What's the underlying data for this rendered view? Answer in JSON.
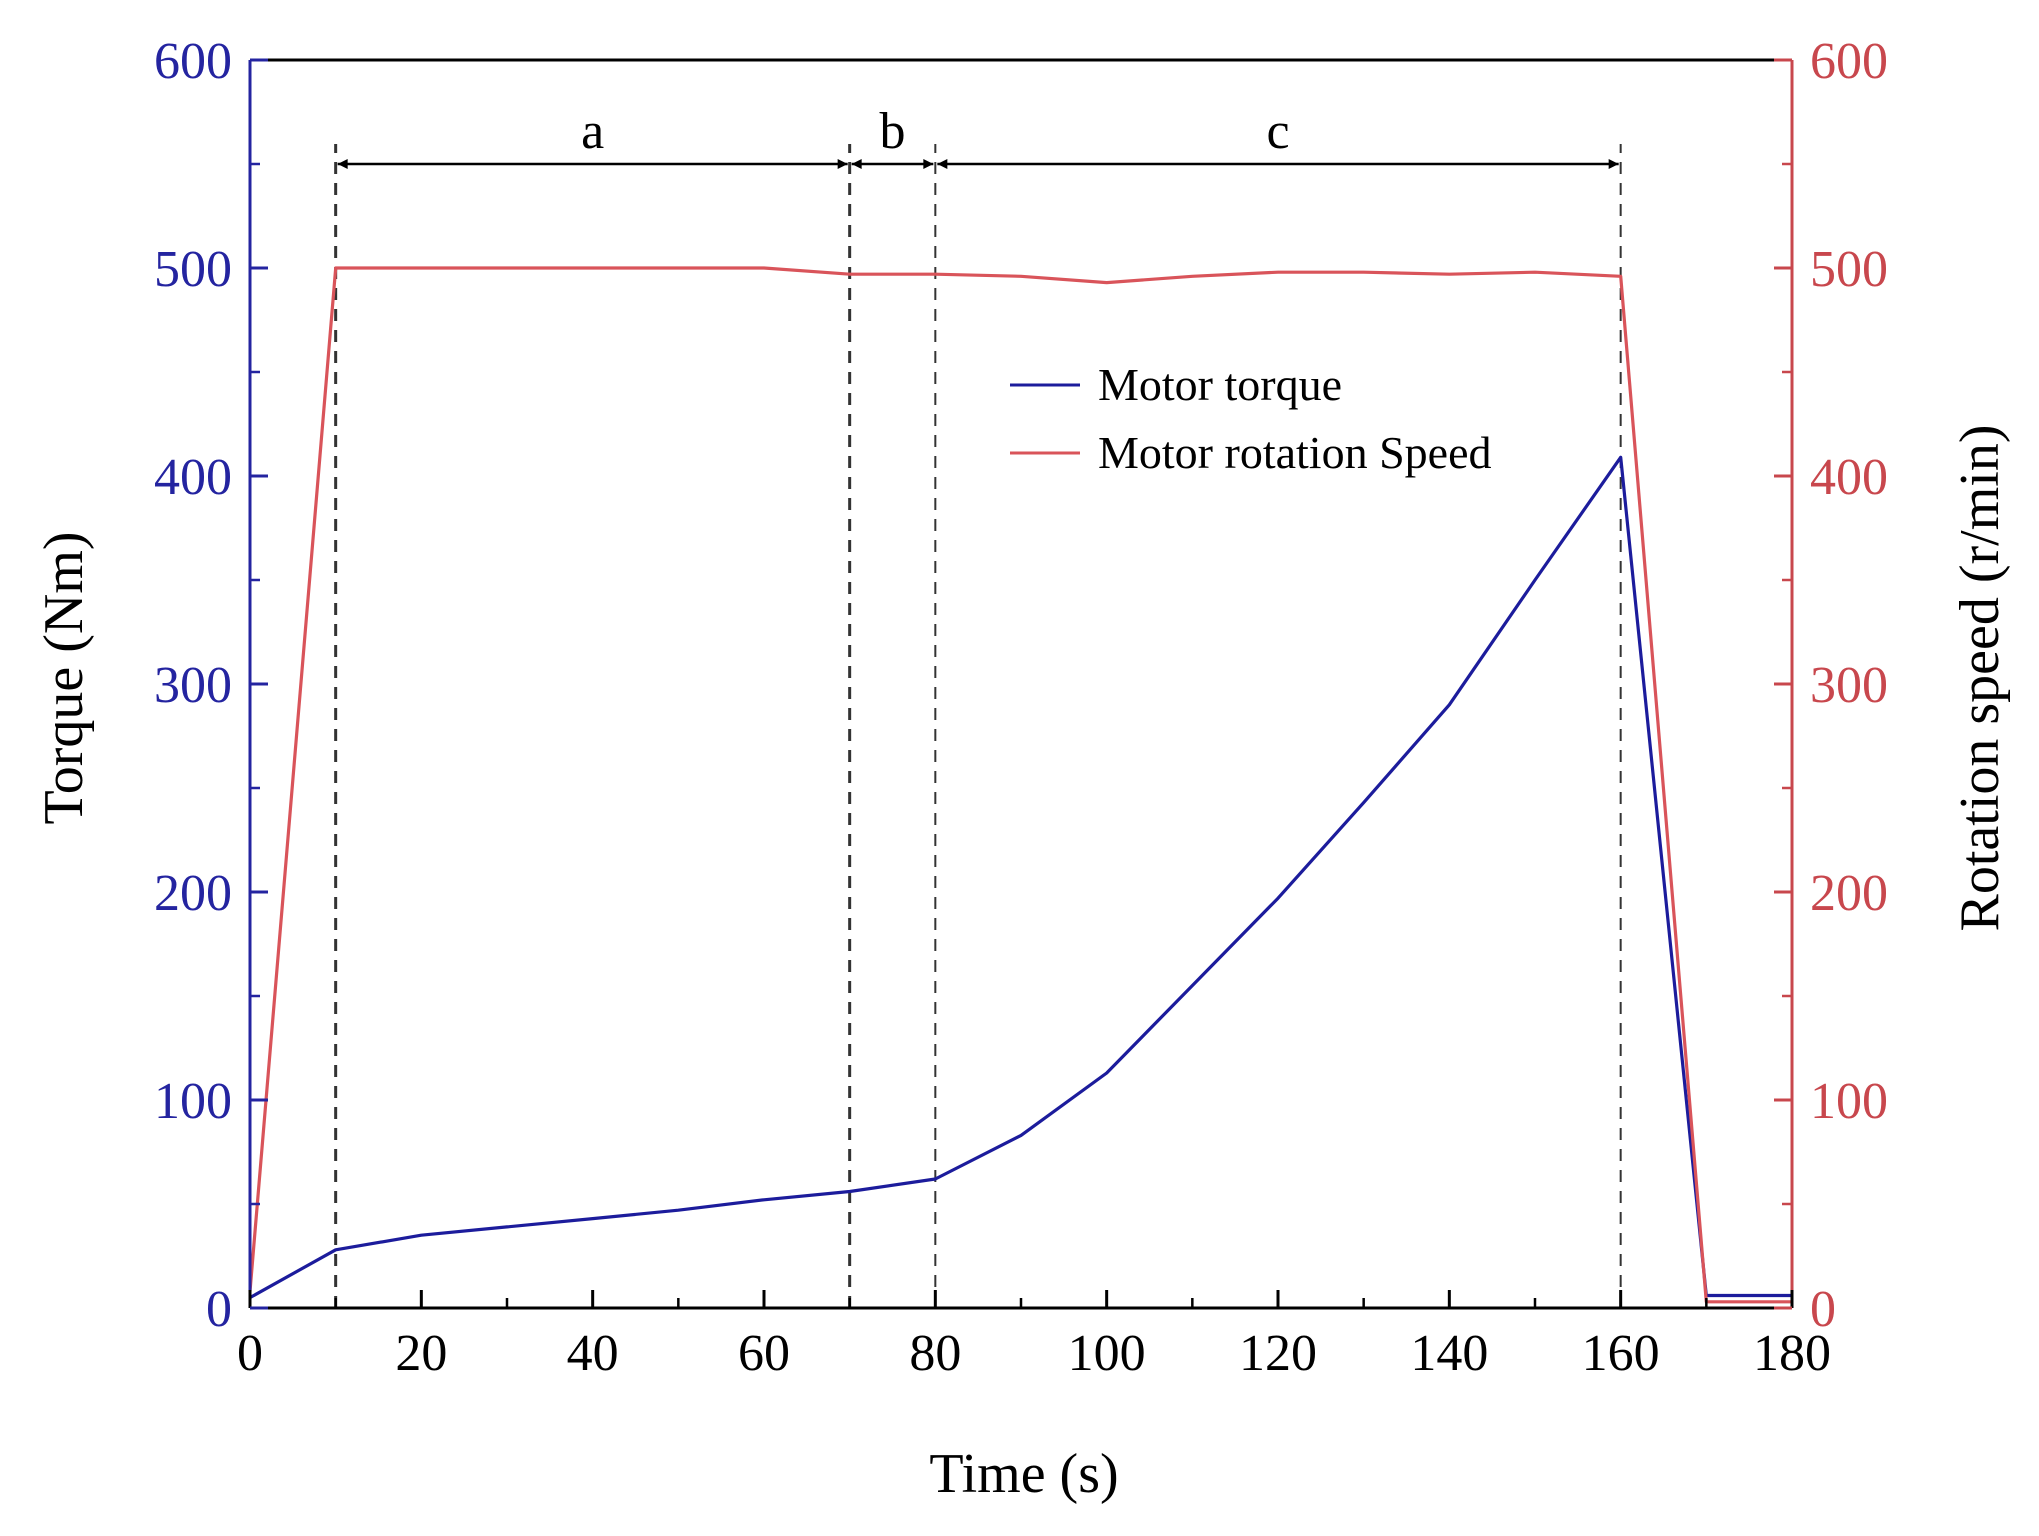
{
  "chart_data": {
    "type": "line",
    "title": "",
    "xlabel": "Time (s)",
    "ylabel": "Torque (Nm)",
    "y2label": "Rotation speed (r/min)",
    "xlim": [
      0,
      180
    ],
    "ylim": [
      0,
      600
    ],
    "y2lim": [
      0,
      600
    ],
    "grid": false,
    "legend_position": "center-right",
    "x_ticks": [
      0,
      20,
      40,
      60,
      80,
      100,
      120,
      140,
      160,
      180
    ],
    "x_tick_labels": [
      "0",
      "20",
      "40",
      "60",
      "80",
      "100",
      "120",
      "140",
      "160",
      "180"
    ],
    "y_ticks": [
      0,
      100,
      200,
      300,
      400,
      500,
      600
    ],
    "y_tick_labels": [
      "0",
      "100",
      "200",
      "300",
      "400",
      "500",
      "600"
    ],
    "y2_ticks": [
      0,
      100,
      200,
      300,
      400,
      500,
      600
    ],
    "y2_tick_labels": [
      "0",
      "100",
      "200",
      "300",
      "400",
      "500",
      "600"
    ],
    "series": [
      {
        "name": "Motor torque",
        "axis": "left",
        "color": "#1c1c9c",
        "x": [
          0,
          10,
          20,
          30,
          40,
          50,
          60,
          70,
          80,
          90,
          100,
          110,
          120,
          130,
          140,
          150,
          160,
          170,
          180
        ],
        "values": [
          5,
          28,
          35,
          39,
          43,
          47,
          52,
          56,
          62,
          83,
          113,
          155,
          197,
          243,
          290,
          350,
          409,
          6,
          6
        ]
      },
      {
        "name": "Motor rotation Speed",
        "axis": "right",
        "color": "#d9545a",
        "x": [
          0,
          10,
          20,
          40,
          60,
          70,
          80,
          90,
          100,
          110,
          120,
          130,
          140,
          150,
          160,
          170,
          180
        ],
        "values": [
          8,
          500,
          500,
          500,
          500,
          497,
          497,
          496,
          493,
          496,
          498,
          498,
          497,
          498,
          496,
          3,
          3
        ]
      }
    ],
    "phases": [
      {
        "label": "a",
        "start": 10,
        "end": 70
      },
      {
        "label": "b",
        "start": 70,
        "end": 80
      },
      {
        "label": "c",
        "start": 80,
        "end": 160
      }
    ],
    "phase_boundaries": [
      10,
      70,
      80,
      160
    ],
    "phase_arrow_level": 550
  },
  "colors": {
    "torque_axis": "#2424a0",
    "speed_axis": "#c8474d",
    "frame": "#000000",
    "annotation": "#333333"
  }
}
